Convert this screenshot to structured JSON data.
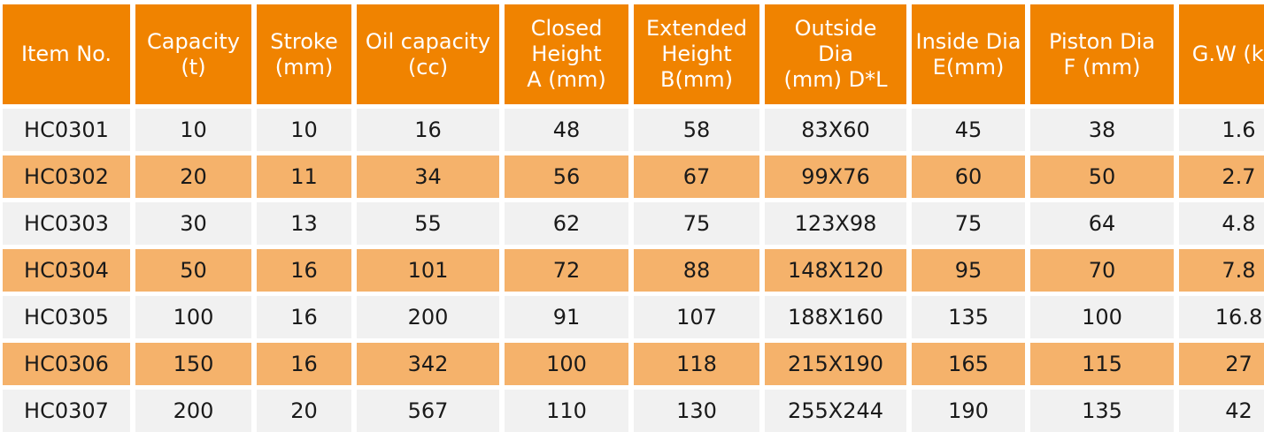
{
  "table": {
    "headers": [
      "Item No.",
      "Capacity\n(t)",
      "Stroke\n(mm)",
      "Oil capacity\n(cc)",
      "Closed\nHeight\nA (mm)",
      "Extended\nHeight\nB(mm)",
      "Outside\nDia\n(mm) D*L",
      "Inside Dia\nE(mm)",
      "Piston Dia\nF (mm)",
      "G.W (kg)"
    ],
    "rows": [
      [
        "HC0301",
        "10",
        "10",
        "16",
        "48",
        "58",
        "83X60",
        "45",
        "38",
        "1.6"
      ],
      [
        "HC0302",
        "20",
        "11",
        "34",
        "56",
        "67",
        "99X76",
        "60",
        "50",
        "2.7"
      ],
      [
        "HC0303",
        "30",
        "13",
        "55",
        "62",
        "75",
        "123X98",
        "75",
        "64",
        "4.8"
      ],
      [
        "HC0304",
        "50",
        "16",
        "101",
        "72",
        "88",
        "148X120",
        "95",
        "70",
        "7.8"
      ],
      [
        "HC0305",
        "100",
        "16",
        "200",
        "91",
        "107",
        "188X160",
        "135",
        "100",
        "16.8"
      ],
      [
        "HC0306",
        "150",
        "16",
        "342",
        "100",
        "118",
        "215X190",
        "165",
        "115",
        "27"
      ],
      [
        "HC0307",
        "200",
        "20",
        "567",
        "110",
        "130",
        "255X244",
        "190",
        "135",
        "42"
      ]
    ]
  },
  "colors": {
    "header_bg": "#f08300",
    "header_text": "#ffffff",
    "row_light": "#f1f1f1",
    "row_orange": "#f5b26b"
  }
}
